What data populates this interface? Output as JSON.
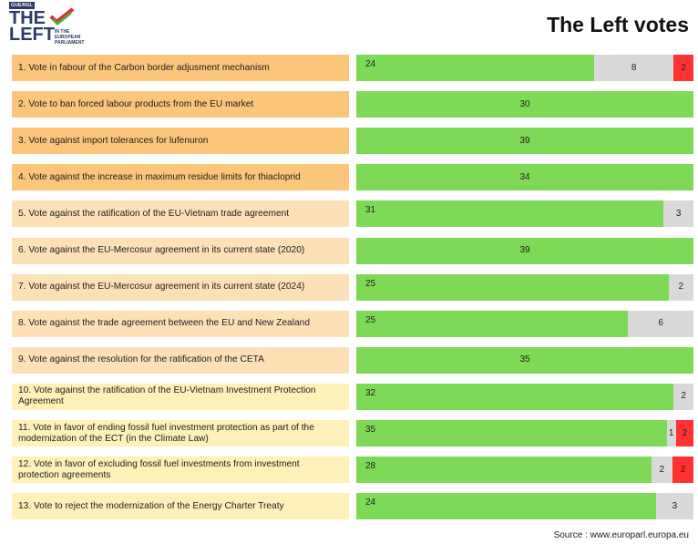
{
  "header": {
    "logo_tag": "GUE/NGL",
    "logo_line1": "THE",
    "logo_line2": "LEFT",
    "logo_sub": [
      "IN THE",
      "EUROPEAN",
      "PARLIAMENT"
    ],
    "title": "The Left votes"
  },
  "source": "Source : www.europarl.europa.eu",
  "colors": {
    "label_orange": "#fbc57a",
    "label_light_orange": "#fde0b6",
    "label_yellow": "#fff0b8",
    "for": "#7ed957",
    "abstain": "#d9d9d9",
    "against": "#ff3131"
  },
  "chart_data": {
    "type": "bar",
    "stacked": true,
    "orientation": "horizontal",
    "title": "The Left votes",
    "categories": [
      "1. Vote in fabour of the Carbon border adjusment mechanism",
      "2. Vote to ban forced labour products from the EU market",
      "3. Vote against import tolerances for lufenuron",
      "4. Vote against the increase in maximum residue limits for thiacloprid",
      "5. Vote against the ratification of the EU-Vietnam trade agreement",
      "6. Vote against the EU-Mercosur agreement in its current state (2020)",
      "7. Vote against the EU-Mercosur agreement in its current state (2024)",
      "8. Vote against the trade agreement between the EU and New Zealand",
      "9. Vote against the resolution for the ratification of the CETA",
      "10.  Vote against the ratification of the EU-Vietnam Investment Protection Agreement",
      "11. Vote in favor of ending fossil fuel investment protection as part of the modernization of the ECT (in the Climate Law)",
      "12. Vote in favor of excluding fossil fuel investments from investment protection agreements",
      "13. Vote to reject the modernization of the Energy Charter Treaty"
    ],
    "label_colors": [
      "#fbc57a",
      "#fbc57a",
      "#fbc57a",
      "#fbc57a",
      "#fde0b6",
      "#fde0b6",
      "#fde0b6",
      "#fde0b6",
      "#fde0b6",
      "#fff0b8",
      "#fff0b8",
      "#fff0b8",
      "#fff0b8"
    ],
    "series": [
      {
        "color": "#7ed957",
        "values": [
          24,
          30,
          39,
          34,
          31,
          39,
          25,
          25,
          35,
          32,
          35,
          28,
          24
        ]
      },
      {
        "color": "#d9d9d9",
        "values": [
          8,
          0,
          0,
          0,
          3,
          0,
          2,
          6,
          0,
          2,
          1,
          2,
          3
        ]
      },
      {
        "color": "#ff3131",
        "values": [
          2,
          0,
          0,
          0,
          0,
          0,
          0,
          0,
          0,
          0,
          2,
          2,
          0
        ]
      }
    ],
    "value_label_position": [
      "left",
      "center",
      "center",
      "center",
      "left",
      "center",
      "left",
      "left",
      "center",
      "left",
      "left",
      "left",
      "left"
    ]
  }
}
